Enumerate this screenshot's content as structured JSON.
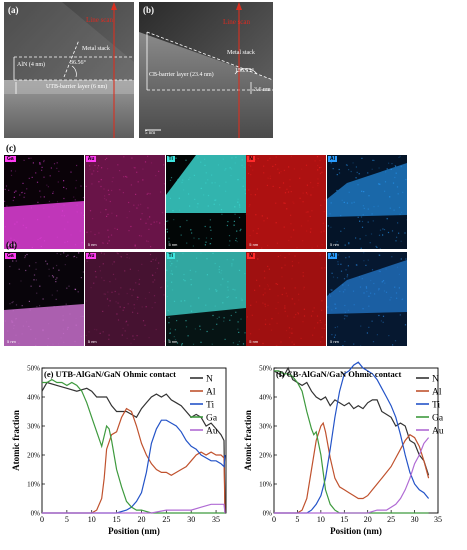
{
  "panel_a": {
    "label": "(a)",
    "line_scan": "Line scan",
    "metal_stack": "Metal stack",
    "angle": "36.56°",
    "aln_label": "AlN (4 nm)",
    "barrier_label": "UTB-barrier layer (6 nm)"
  },
  "panel_b": {
    "label": "(b)",
    "line_scan": "Line scan",
    "metal_stack": "Metal stack",
    "angle": "156.13°",
    "barrier_label": "CB-barrier layer (23.4 nm)",
    "depth_label": "3.6 nm",
    "scale_bar": "5 nm"
  },
  "panel_c": {
    "label": "(c)",
    "maps": [
      {
        "element": "Ga",
        "tag_color": "#ff3df2",
        "scale": "5 nm"
      },
      {
        "element": "Au",
        "tag_color": "#ff3df2",
        "scale": "5 nm"
      },
      {
        "element": "Ti",
        "tag_color": "#3fe6e0",
        "scale": "5 nm"
      },
      {
        "element": "N",
        "tag_color": "#ff2a2a",
        "scale": "5 nm"
      },
      {
        "element": "Al",
        "tag_color": "#2a9dff",
        "scale": "5 nm"
      }
    ]
  },
  "panel_d": {
    "label": "(d)",
    "maps": [
      {
        "element": "Ga",
        "tag_color": "#ff3df2",
        "scale": "5 nm"
      },
      {
        "element": "Au",
        "tag_color": "#ff3df2",
        "scale": "5 nm"
      },
      {
        "element": "Ti",
        "tag_color": "#3fe6e0",
        "scale": "5 nm"
      },
      {
        "element": "N",
        "tag_color": "#ff2a2a",
        "scale": "5 nm"
      },
      {
        "element": "Al",
        "tag_color": "#2a9dff",
        "scale": "5 nm"
      }
    ]
  },
  "chart_data": [
    {
      "type": "line",
      "title": "(e) UTB-AlGaN/GaN Ohmic contact",
      "xlabel": "Position (nm)",
      "ylabel": "Atomic fraction",
      "xlim": [
        0,
        37
      ],
      "ylim": [
        0,
        50
      ],
      "xticks": [
        0,
        5,
        10,
        15,
        20,
        25,
        30,
        35
      ],
      "yticks": [
        0,
        10,
        20,
        30,
        40,
        50
      ],
      "ytick_labels": [
        "0%",
        "10%",
        "20%",
        "30%",
        "40%",
        "50%"
      ],
      "legend_position": "top-right",
      "series": [
        {
          "name": "N",
          "color": "#333333",
          "x": [
            0,
            1,
            3,
            5,
            7,
            9,
            10,
            11,
            12,
            13,
            14,
            15,
            16,
            17,
            18,
            19,
            20,
            21,
            22,
            23,
            24,
            25,
            26,
            27,
            28,
            29,
            30,
            31,
            32,
            33,
            34,
            35,
            36,
            36.6,
            36.8
          ],
          "y": [
            42,
            45,
            44,
            43,
            42,
            43,
            42,
            40,
            40,
            40,
            37,
            35,
            35,
            35,
            34,
            33,
            36,
            38,
            40,
            41,
            40,
            41,
            39,
            38,
            37,
            35,
            33,
            34,
            33,
            30,
            31,
            29,
            27,
            25,
            0
          ]
        },
        {
          "name": "Al",
          "color": "#c0522e",
          "x": [
            0,
            3,
            6,
            9,
            10,
            11,
            12,
            12.5,
            13,
            14,
            15,
            16,
            17,
            18,
            19,
            20,
            21,
            22,
            23,
            24,
            25,
            26,
            27,
            28,
            29,
            30,
            31,
            32,
            33,
            34,
            35,
            36,
            36.6,
            36.8
          ],
          "y": [
            0,
            0,
            0,
            0,
            0,
            1,
            5,
            12,
            22,
            27,
            28,
            33,
            36,
            35,
            30,
            24,
            20,
            17,
            15,
            14,
            14,
            13,
            14,
            15,
            16,
            18,
            20,
            21,
            20,
            21,
            20,
            20,
            19,
            0
          ]
        },
        {
          "name": "Ti",
          "color": "#2454c8",
          "x": [
            0,
            10,
            15,
            17,
            18,
            19,
            20,
            21,
            22,
            23,
            24,
            25,
            26,
            27,
            28,
            29,
            30,
            31,
            32,
            33,
            34,
            35,
            36,
            36.6,
            36.8
          ],
          "y": [
            0,
            0,
            0,
            1,
            2,
            4,
            7,
            14,
            24,
            29,
            32,
            32,
            31,
            30,
            28,
            25,
            23,
            22,
            20,
            19,
            18,
            18,
            17,
            16,
            20
          ]
        },
        {
          "name": "Ga",
          "color": "#3e9a3e",
          "x": [
            0,
            1,
            2,
            3,
            4,
            5,
            6,
            7,
            8,
            9,
            10,
            11,
            12,
            13,
            13.5,
            14,
            15,
            16,
            17,
            18,
            19,
            20,
            22,
            25,
            30,
            35,
            36.8
          ],
          "y": [
            45,
            45,
            46,
            45,
            45,
            44,
            45,
            44,
            42,
            38,
            33,
            28,
            23,
            30,
            29,
            25,
            15,
            9,
            4,
            2,
            1,
            1,
            0,
            0,
            0,
            0,
            0
          ]
        },
        {
          "name": "Au",
          "color": "#b06bd4",
          "x": [
            0,
            10,
            17,
            20,
            22,
            25,
            28,
            30,
            32,
            34,
            35,
            36,
            36.6,
            36.8
          ],
          "y": [
            0,
            0,
            0,
            0,
            0,
            1,
            1,
            1,
            2,
            3,
            3,
            3,
            3,
            0
          ]
        }
      ]
    },
    {
      "type": "line",
      "title": "(f) CB-AlGaN/GaN Ohmic contact",
      "xlabel": "Position (nm)",
      "ylabel": "Atomic fraction",
      "xlim": [
        0,
        35
      ],
      "ylim": [
        0,
        50
      ],
      "xticks": [
        0,
        5,
        10,
        15,
        20,
        25,
        30,
        35
      ],
      "yticks": [
        0,
        10,
        20,
        30,
        40,
        50
      ],
      "ytick_labels": [
        "0%",
        "10%",
        "20%",
        "30%",
        "40%",
        "50%"
      ],
      "legend_position": "top-right",
      "series": [
        {
          "name": "N",
          "color": "#333333",
          "x": [
            0,
            1,
            2,
            3,
            4,
            5,
            6,
            7,
            8,
            9,
            10,
            11,
            12,
            13,
            14,
            15,
            16,
            17,
            18,
            19,
            20,
            21,
            22,
            23,
            24,
            25,
            26,
            27,
            28,
            29,
            30,
            31,
            32,
            33
          ],
          "y": [
            49,
            48,
            47,
            50,
            46,
            45,
            44,
            45,
            42,
            40,
            39,
            40,
            37,
            39,
            38,
            37,
            38,
            36,
            37,
            36,
            38,
            39,
            39,
            35,
            34,
            33,
            30,
            31,
            30,
            25,
            24,
            20,
            18,
            13
          ]
        },
        {
          "name": "Al",
          "color": "#c0522e",
          "x": [
            0,
            3,
            5,
            6,
            7,
            8,
            9,
            10,
            10.5,
            11,
            12,
            13,
            14,
            15,
            16,
            17,
            18,
            19,
            20,
            21,
            22,
            23,
            24,
            25,
            26,
            27,
            28,
            29,
            30,
            31,
            32,
            33
          ],
          "y": [
            0,
            0,
            0,
            1,
            5,
            15,
            25,
            30,
            31,
            28,
            19,
            12,
            9,
            8,
            7,
            6,
            5,
            5,
            6,
            8,
            10,
            12,
            14,
            16,
            19,
            22,
            25,
            27,
            26,
            23,
            18,
            12
          ]
        },
        {
          "name": "Ti",
          "color": "#2454c8",
          "x": [
            0,
            5,
            7,
            8,
            9,
            10,
            11,
            12,
            13,
            14,
            15,
            16,
            17,
            18,
            19,
            20,
            21,
            22,
            23,
            24,
            25,
            26,
            27,
            28,
            29,
            30,
            31,
            32,
            33
          ],
          "y": [
            0,
            0,
            0,
            1,
            3,
            6,
            12,
            22,
            33,
            42,
            48,
            49,
            51,
            52,
            50,
            49,
            48,
            46,
            43,
            40,
            37,
            33,
            27,
            20,
            14,
            10,
            8,
            7,
            5
          ]
        },
        {
          "name": "Ga",
          "color": "#3e9a3e",
          "x": [
            0,
            1,
            2,
            3,
            4,
            5,
            6,
            7,
            8,
            8.5,
            9,
            10,
            11,
            12,
            13,
            14,
            15,
            20,
            25,
            30,
            33
          ],
          "y": [
            49,
            49,
            48,
            48,
            47,
            45,
            42,
            35,
            29,
            27,
            28,
            20,
            8,
            3,
            1,
            0,
            0,
            0,
            0,
            0,
            0
          ]
        },
        {
          "name": "Au",
          "color": "#b06bd4",
          "x": [
            0,
            10,
            15,
            18,
            20,
            22,
            24,
            25,
            26,
            27,
            28,
            29,
            30,
            31,
            32,
            33
          ],
          "y": [
            0,
            0,
            0,
            0,
            0,
            1,
            1,
            2,
            3,
            5,
            8,
            12,
            17,
            20,
            24,
            26
          ]
        }
      ]
    }
  ]
}
